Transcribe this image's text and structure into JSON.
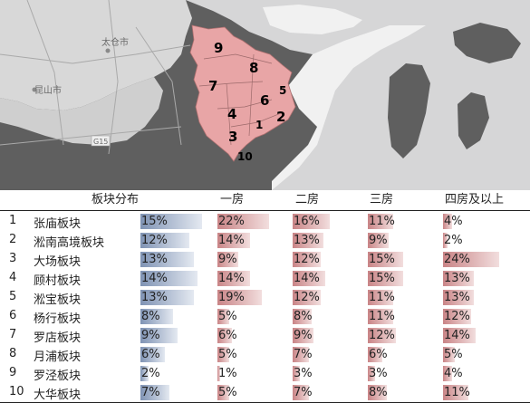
{
  "map": {
    "labels": [
      {
        "text": "太仓市",
        "kind": "city"
      },
      {
        "text": "昆山市",
        "kind": "city"
      },
      {
        "text": "G15",
        "kind": "road"
      }
    ],
    "districts": [
      "9",
      "8",
      "7",
      "5",
      "6",
      "4",
      "1",
      "2",
      "3",
      "10"
    ],
    "colors": {
      "land": "#5f5f5f",
      "water": "#d6d6d7",
      "district": "#e8a5a6",
      "outline": "#a0a0a0"
    }
  },
  "table": {
    "headers": {
      "area": "板块分布",
      "c1": "一房",
      "c2": "二房",
      "c3": "三房",
      "c4": "四房及以上"
    },
    "rows": [
      {
        "idx": "1",
        "name": "张庙板块",
        "area": "15%",
        "c1": "22%",
        "c2": "16%",
        "c3": "11%",
        "c4": "4%"
      },
      {
        "idx": "2",
        "name": "淞南高境板块",
        "area": "12%",
        "c1": "14%",
        "c2": "13%",
        "c3": "9%",
        "c4": "2%"
      },
      {
        "idx": "3",
        "name": "大场板块",
        "area": "13%",
        "c1": "9%",
        "c2": "12%",
        "c3": "15%",
        "c4": "24%"
      },
      {
        "idx": "4",
        "name": "顾村板块",
        "area": "14%",
        "c1": "14%",
        "c2": "14%",
        "c3": "15%",
        "c4": "13%"
      },
      {
        "idx": "5",
        "name": "淞宝板块",
        "area": "13%",
        "c1": "19%",
        "c2": "12%",
        "c3": "11%",
        "c4": "13%"
      },
      {
        "idx": "6",
        "name": "杨行板块",
        "area": "8%",
        "c1": "5%",
        "c2": "8%",
        "c3": "11%",
        "c4": "12%"
      },
      {
        "idx": "7",
        "name": "罗店板块",
        "area": "9%",
        "c1": "6%",
        "c2": "9%",
        "c3": "12%",
        "c4": "14%"
      },
      {
        "idx": "8",
        "name": "月浦板块",
        "area": "6%",
        "c1": "5%",
        "c2": "7%",
        "c3": "6%",
        "c4": "5%"
      },
      {
        "idx": "9",
        "name": "罗泾板块",
        "area": "2%",
        "c1": "1%",
        "c2": "3%",
        "c3": "3%",
        "c4": "4%"
      },
      {
        "idx": "10",
        "name": "大华板块",
        "area": "7%",
        "c1": "5%",
        "c2": "7%",
        "c3": "8%",
        "c4": "11%"
      }
    ],
    "colors": {
      "area_bar": "#7f93b4",
      "room_bar": "#c98486",
      "rule": "#222222"
    }
  }
}
